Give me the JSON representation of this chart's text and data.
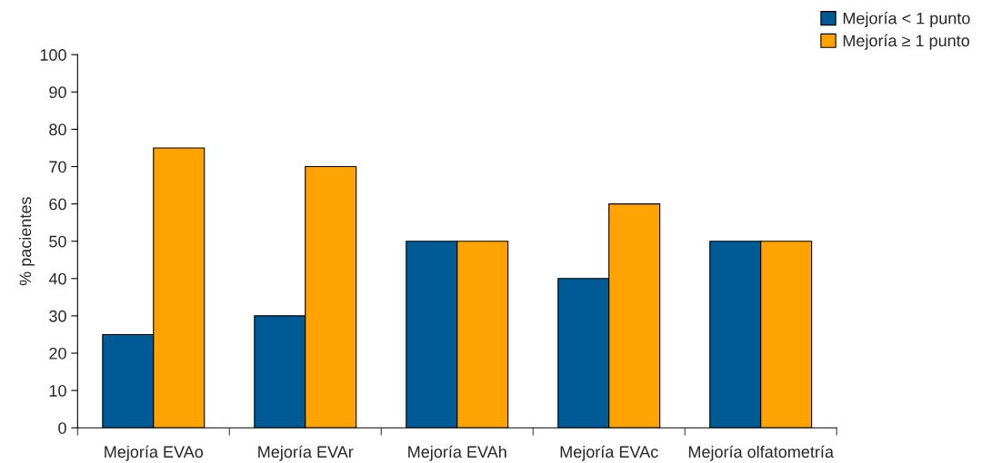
{
  "chart_data": {
    "type": "bar",
    "ylabel": "% pacientes",
    "categories": [
      "Mejoría EVAo",
      "Mejoría EVAr",
      "Mejoría EVAh",
      "Mejoría EVAc",
      "Mejoría olfatometría"
    ],
    "series": [
      {
        "name": "Mejoría < 1 punto",
        "color": "#005a96",
        "values": [
          25,
          30,
          50,
          40,
          50
        ]
      },
      {
        "name": "Mejoría ≥ 1 punto",
        "color": "#ffa305",
        "values": [
          75,
          70,
          50,
          60,
          50
        ]
      }
    ],
    "ylim": [
      0,
      100
    ],
    "yticks": [
      0,
      10,
      20,
      30,
      40,
      50,
      60,
      70,
      80,
      90,
      100
    ],
    "grid": false,
    "legend": "top right"
  }
}
